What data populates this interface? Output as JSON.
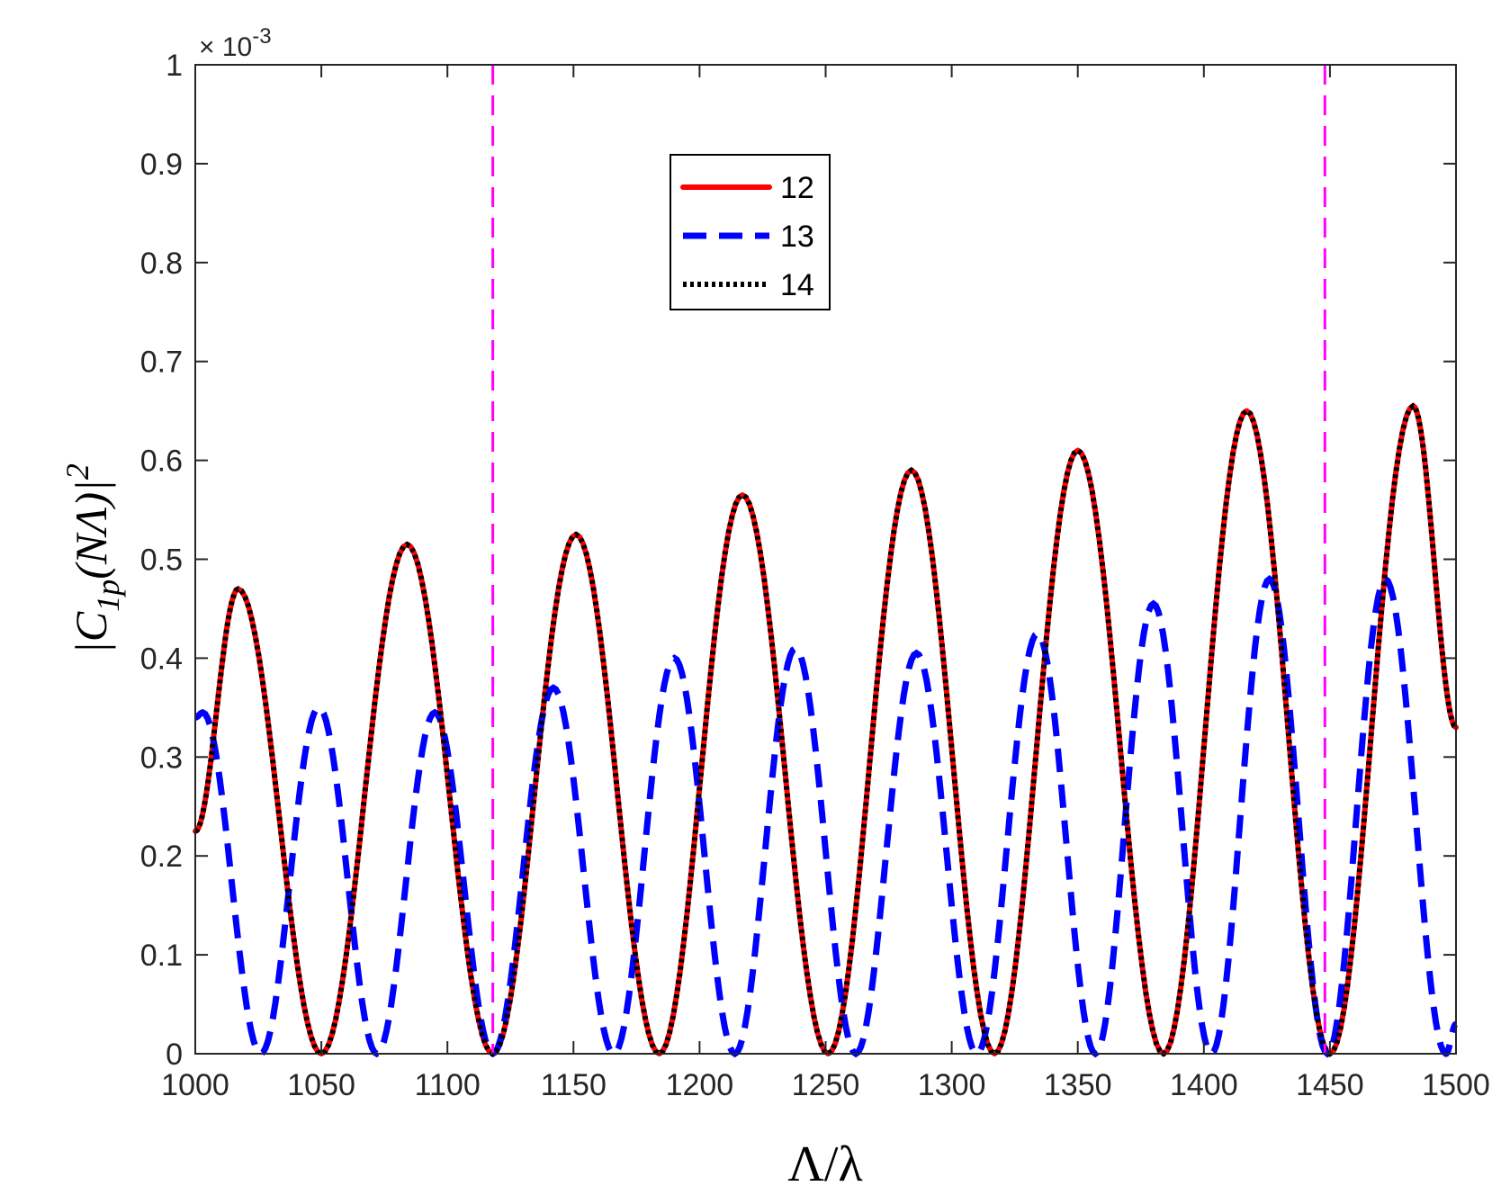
{
  "chart_data": {
    "type": "line",
    "xlabel": "Λ/λ",
    "ylabel": "|C1p(NΛ)|2",
    "ylabel_parts": {
      "base": "|C",
      "sub": "1p",
      "mid": "(NΛ)|",
      "sup": "2"
    },
    "y_exponent_label": "× 10",
    "y_exponent_power": "-3",
    "xlim": [
      1000,
      1500
    ],
    "ylim": [
      0,
      1
    ],
    "x_ticks": [
      "1000",
      "1050",
      "1100",
      "1150",
      "1200",
      "1250",
      "1300",
      "1350",
      "1400",
      "1450",
      "1500"
    ],
    "y_ticks": [
      "0",
      "0.1",
      "0.2",
      "0.3",
      "0.4",
      "0.5",
      "0.6",
      "0.7",
      "0.8",
      "0.9",
      "1"
    ],
    "grid": false,
    "legend_position": "top-center",
    "vertical_lines": [
      {
        "x": 1118,
        "color": "#ff00ff",
        "style": "dashed"
      },
      {
        "x": 1448,
        "color": "#ff00ff",
        "style": "dashed"
      }
    ],
    "series": [
      {
        "name": "12",
        "color": "#ff0000",
        "style": "solid",
        "x": [
          1000,
          1017,
          1050,
          1084,
          1118,
          1151,
          1184,
          1217,
          1251,
          1284,
          1317,
          1350,
          1384,
          1417,
          1450,
          1483,
          1500
        ],
        "y": [
          0.225,
          0.47,
          0.0,
          0.515,
          0.0,
          0.525,
          0.0,
          0.565,
          0.0,
          0.59,
          0.0,
          0.61,
          0.0,
          0.65,
          0.0,
          0.655,
          0.33
        ]
      },
      {
        "name": "13",
        "color": "#0000ff",
        "style": "dashed",
        "x": [
          1000,
          1003,
          1026,
          1049,
          1072,
          1095,
          1118,
          1142,
          1166,
          1190,
          1214,
          1238,
          1262,
          1286,
          1310,
          1334,
          1357,
          1380,
          1403,
          1426,
          1449,
          1472,
          1496,
          1500
        ],
        "y": [
          0.34,
          0.345,
          0.0,
          0.35,
          0.0,
          0.345,
          0.0,
          0.37,
          0.0,
          0.4,
          0.0,
          0.41,
          0.0,
          0.405,
          0.0,
          0.425,
          0.0,
          0.455,
          0.0,
          0.48,
          0.0,
          0.48,
          0.0,
          0.03
        ]
      },
      {
        "name": "14",
        "color": "#000000",
        "style": "dotted",
        "x": [
          1000,
          1017,
          1050,
          1084,
          1118,
          1151,
          1184,
          1217,
          1251,
          1284,
          1317,
          1350,
          1384,
          1417,
          1450,
          1483,
          1500
        ],
        "y": [
          0.225,
          0.47,
          0.0,
          0.515,
          0.0,
          0.525,
          0.0,
          0.565,
          0.0,
          0.59,
          0.0,
          0.61,
          0.0,
          0.65,
          0.0,
          0.655,
          0.33
        ]
      }
    ]
  }
}
